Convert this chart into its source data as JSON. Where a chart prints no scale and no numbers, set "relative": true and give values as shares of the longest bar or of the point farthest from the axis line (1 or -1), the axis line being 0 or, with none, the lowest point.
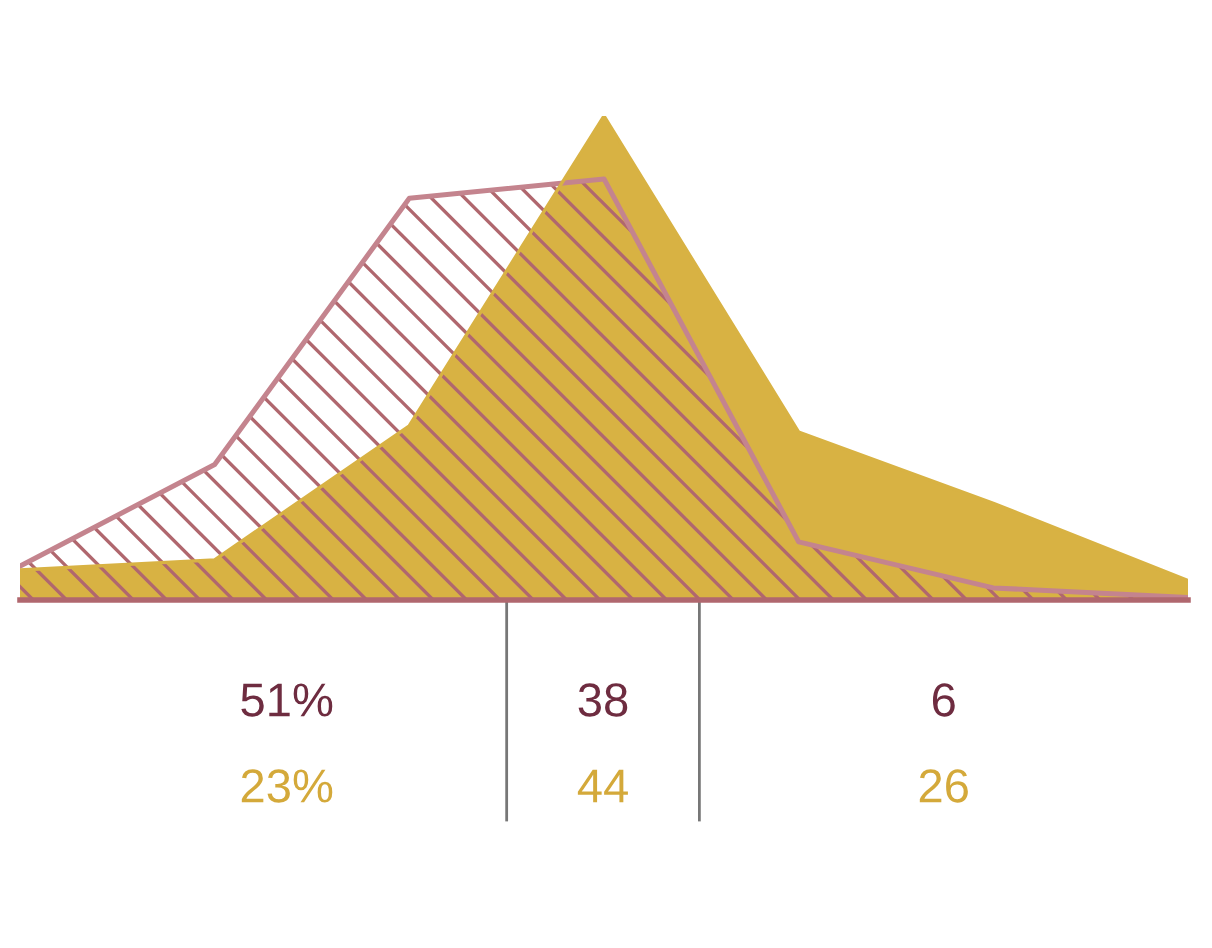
{
  "chart_data": {
    "type": "area",
    "relative": true,
    "categories": [
      null,
      null,
      null,
      null,
      null,
      null,
      null
    ],
    "series": [
      {
        "color": "#d8b243",
        "values": [
          0.062,
          0.083,
          0.36,
          1.0,
          0.347,
          0.2,
          0.04
        ]
      },
      {
        "color": "#c4848e",
        "values": [
          0.07,
          0.28,
          0.83,
          0.87,
          0.12,
          0.025,
          0.005
        ]
      }
    ],
    "annotations": [
      "51%",
      "38",
      "6",
      "23%",
      "44",
      "26"
    ]
  }
}
